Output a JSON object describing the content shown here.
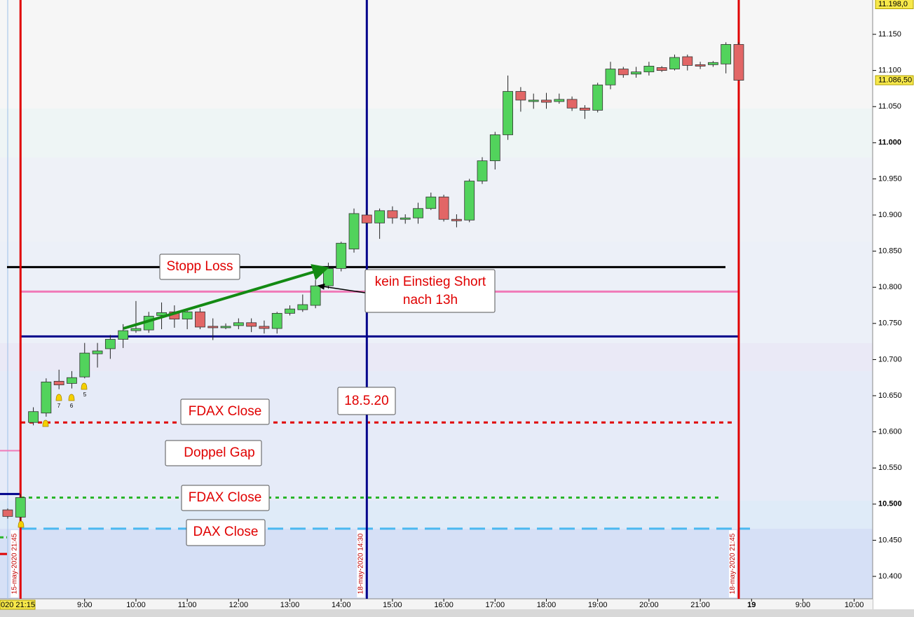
{
  "chart_data": {
    "type": "candlestick",
    "x": [
      7.5,
      7.75,
      8,
      8.25,
      8.5,
      8.75,
      9,
      9.25,
      9.5,
      9.75,
      10,
      10.25,
      10.5,
      10.75,
      11,
      11.25,
      11.5,
      11.75,
      12,
      12.25,
      12.5,
      12.75,
      13,
      13.25,
      13.5,
      13.75,
      14,
      14.25,
      14.5,
      14.75,
      15,
      15.25,
      15.5,
      15.75,
      16,
      16.25,
      16.5,
      16.75,
      17,
      17.25,
      17.5,
      17.75,
      18,
      18.25,
      18.5,
      18.75,
      19,
      19.25,
      19.5,
      19.75,
      20,
      20.25,
      20.5,
      20.75,
      21,
      21.25,
      21.5,
      21.75
    ],
    "open": [
      10492,
      10482,
      10613,
      10626,
      10670,
      10667,
      10676,
      10708,
      10715,
      10728,
      10740,
      10741,
      10761,
      10766,
      10756,
      10766,
      10746,
      10744,
      10747,
      10751,
      10746,
      10743,
      10764,
      10769,
      10775,
      10802,
      10826,
      10853,
      10900,
      10889,
      10906,
      10894,
      10896,
      10909,
      10925,
      10894,
      10893,
      10947,
      10975,
      11011,
      11071,
      11057,
      11059,
      11057,
      11060,
      11048,
      11045,
      11080,
      11102,
      11095,
      11098,
      11104,
      11102,
      11119,
      11108,
      11108,
      11109,
      11136
    ],
    "high": [
      10494,
      10514,
      10634,
      10674,
      10686,
      10684,
      10723,
      10723,
      10734,
      10749,
      10781,
      10766,
      10779,
      10775,
      10771,
      10771,
      10757,
      10750,
      10757,
      10757,
      10754,
      10766,
      10775,
      10790,
      10810,
      10834,
      10863,
      10909,
      10907,
      10909,
      10912,
      10901,
      10917,
      10931,
      10928,
      10901,
      10950,
      10980,
      11015,
      11093,
      11077,
      11068,
      11069,
      11068,
      11064,
      11052,
      11083,
      11112,
      11105,
      11105,
      11112,
      11106,
      11122,
      11122,
      11112,
      11113,
      11139,
      11139
    ],
    "low": [
      10480,
      10476,
      10609,
      10621,
      10659,
      10660,
      10674,
      10689,
      10701,
      10716,
      10737,
      10737,
      10742,
      10744,
      10742,
      10742,
      10727,
      10742,
      10742,
      10738,
      10736,
      10736,
      10761,
      10766,
      10771,
      10798,
      10822,
      10848,
      10888,
      10867,
      10888,
      10888,
      10888,
      10907,
      10891,
      10883,
      10890,
      10943,
      10963,
      11004,
      11043,
      11047,
      11047,
      11054,
      11044,
      11033,
      11042,
      11074,
      11090,
      11090,
      11093,
      11098,
      11100,
      11100,
      11102,
      11105,
      11096,
      11086.5
    ],
    "close": [
      10483,
      10509,
      10628,
      10669,
      10665,
      10675,
      10709,
      10712,
      10728,
      10740,
      10743,
      10760,
      10765,
      10756,
      10766,
      10745,
      10744,
      10746,
      10751,
      10746,
      10743,
      10764,
      10770,
      10776,
      10802,
      10826,
      10861,
      10902,
      10889,
      10906,
      10896,
      10896,
      10909,
      10925,
      10894,
      10892,
      10947,
      10975,
      11011,
      11071,
      11059,
      11059,
      11056,
      11060,
      11048,
      11045,
      11080,
      11102,
      11094,
      11098,
      11106,
      11100,
      11118,
      11107,
      11106,
      11111,
      11136,
      11086.5
    ],
    "up_color": "#52d35c",
    "down_color": "#e26666",
    "xlim": [
      7.35,
      24.36
    ],
    "xticks": [
      {
        "value": 9,
        "label": "9:00"
      },
      {
        "value": 10,
        "label": "10:00"
      },
      {
        "value": 11,
        "label": "11:00"
      },
      {
        "value": 12,
        "label": "12:00"
      },
      {
        "value": 13,
        "label": "13:00"
      },
      {
        "value": 14,
        "label": "14:00"
      },
      {
        "value": 15,
        "label": "15:00"
      },
      {
        "value": 16,
        "label": "16:00"
      },
      {
        "value": 17,
        "label": "17:00"
      },
      {
        "value": 18,
        "label": "18:00"
      },
      {
        "value": 19,
        "label": "19:00"
      },
      {
        "value": 20,
        "label": "20:00"
      },
      {
        "value": 21,
        "label": "21:00"
      },
      {
        "value": 22,
        "label": "19"
      },
      {
        "value": 23,
        "label": "9:00"
      },
      {
        "value": 24,
        "label": "10:00"
      }
    ],
    "ylim": [
      10369,
      11197.5
    ],
    "yticks": [
      {
        "value": 10400,
        "label": "10.400"
      },
      {
        "value": 10450,
        "label": "10.450"
      },
      {
        "value": 10500,
        "label": "10.500",
        "bold": true
      },
      {
        "value": 10550,
        "label": "10.550"
      },
      {
        "value": 10600,
        "label": "10.600"
      },
      {
        "value": 10650,
        "label": "10.650"
      },
      {
        "value": 10700,
        "label": "10.700"
      },
      {
        "value": 10750,
        "label": "10.750"
      },
      {
        "value": 10800,
        "label": "10.800"
      },
      {
        "value": 10850,
        "label": "10.850"
      },
      {
        "value": 10900,
        "label": "10.900"
      },
      {
        "value": 10950,
        "label": "10.950"
      },
      {
        "value": 11000,
        "label": "11.000",
        "bold": true
      },
      {
        "value": 11050,
        "label": "11.050"
      },
      {
        "value": 11100,
        "label": "11.100"
      },
      {
        "value": 11150,
        "label": "11.150"
      }
    ],
    "price_labels": [
      {
        "value": 11198,
        "label": "11.198,0"
      },
      {
        "value": 11086.5,
        "label": "11.086,50"
      }
    ],
    "levels": [
      {
        "value": 10828,
        "color": "#000000",
        "dash": "none",
        "width": 3
      },
      {
        "value": 10794,
        "color": "#f07ab8",
        "dash": "none",
        "width": 3
      },
      {
        "value": 10732,
        "color": "#00008b",
        "dash": "none",
        "width": 3
      },
      {
        "value": 10613,
        "color": "#e00000",
        "dash": "6 6",
        "width": 3
      },
      {
        "value": 10509,
        "color": "#2ab52a",
        "dash": "5 6",
        "width": 3
      },
      {
        "value": 10466,
        "color": "#4ab8f0",
        "dash": "22 10",
        "width": 3
      },
      {
        "value": 10574,
        "color": "#f07ab8",
        "dash": "none",
        "width": 2
      },
      {
        "value": 10514,
        "color": "#00008b",
        "dash": "none",
        "width": 3
      },
      {
        "value": 10454,
        "color": "#2ab52a",
        "dash": "5 4",
        "width": 3
      },
      {
        "value": 10431,
        "color": "#e00000",
        "dash": "none",
        "width": 3
      }
    ],
    "vlines": [
      {
        "x": 7.75,
        "label": "15-may-2020 21:45",
        "color": "#e00000"
      },
      {
        "x": 14.5,
        "label": "18-may-2020 14:30",
        "color": "#00008b"
      },
      {
        "x": 21.75,
        "label": "18-may-2020 21:45",
        "color": "#e00000"
      }
    ],
    "annotations": {
      "stop": "Stopp Loss",
      "short": [
        "kein Einstieg Short",
        "nach 13h"
      ],
      "date": "18.5.20",
      "fdax1": "FDAX Close",
      "gap": "Doppel Gap",
      "fdax2": "FDAX Close",
      "dax": "DAX Close"
    },
    "alerts": [
      "7",
      "6",
      "5"
    ],
    "cursor_label": "020 21:15"
  }
}
